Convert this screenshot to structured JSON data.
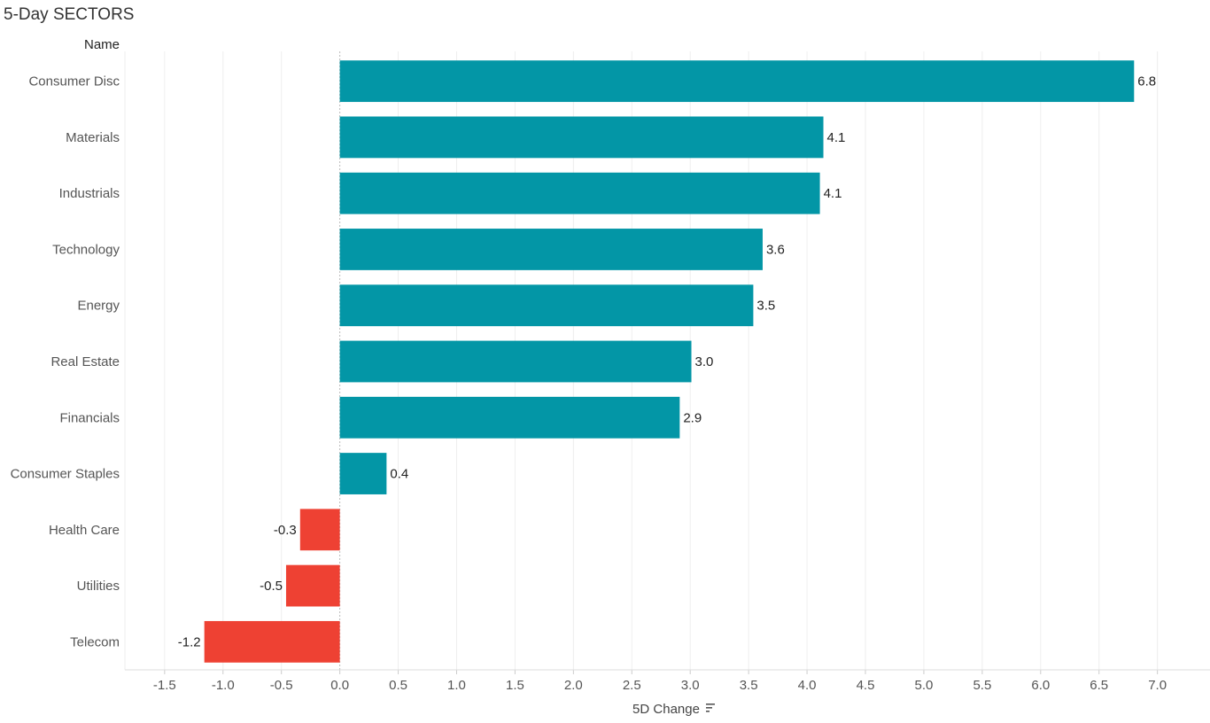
{
  "chart_data": {
    "type": "bar",
    "orientation": "horizontal",
    "title": "5-Day SECTORS",
    "category_header": "Name",
    "xlabel": "5D Change",
    "sort_icon": "sort-descending-icon",
    "categories": [
      "Consumer Disc",
      "Materials",
      "Industrials",
      "Technology",
      "Energy",
      "Real Estate",
      "Financials",
      "Consumer Staples",
      "Health Care",
      "Utilities",
      "Telecom"
    ],
    "values": [
      6.8,
      4.14,
      4.11,
      3.62,
      3.54,
      3.01,
      2.91,
      0.4,
      -0.34,
      -0.46,
      -1.16
    ],
    "data_labels": [
      "6.8",
      "4.1",
      "4.1",
      "3.6",
      "3.5",
      "3.0",
      "2.9",
      "0.4",
      "-0.3",
      "-0.5",
      "-1.2"
    ],
    "xlim": [
      -1.84,
      7.45
    ],
    "xticks": [
      -1.5,
      -1.0,
      -0.5,
      0.0,
      0.5,
      1.0,
      1.5,
      2.0,
      2.5,
      3.0,
      3.5,
      4.0,
      4.5,
      5.0,
      5.5,
      6.0,
      6.5,
      7.0
    ],
    "xtick_labels": [
      "-1.5",
      "-1.0",
      "-0.5",
      "0.0",
      "0.5",
      "1.0",
      "1.5",
      "2.0",
      "2.5",
      "3.0",
      "3.5",
      "4.0",
      "4.5",
      "5.0",
      "5.5",
      "6.0",
      "6.5",
      "7.0"
    ],
    "grid": true,
    "colors": {
      "positive": "#0396a6",
      "negative": "#ee4133",
      "grid": "#eeeeee",
      "zero_line": "#bbbbbb"
    }
  }
}
